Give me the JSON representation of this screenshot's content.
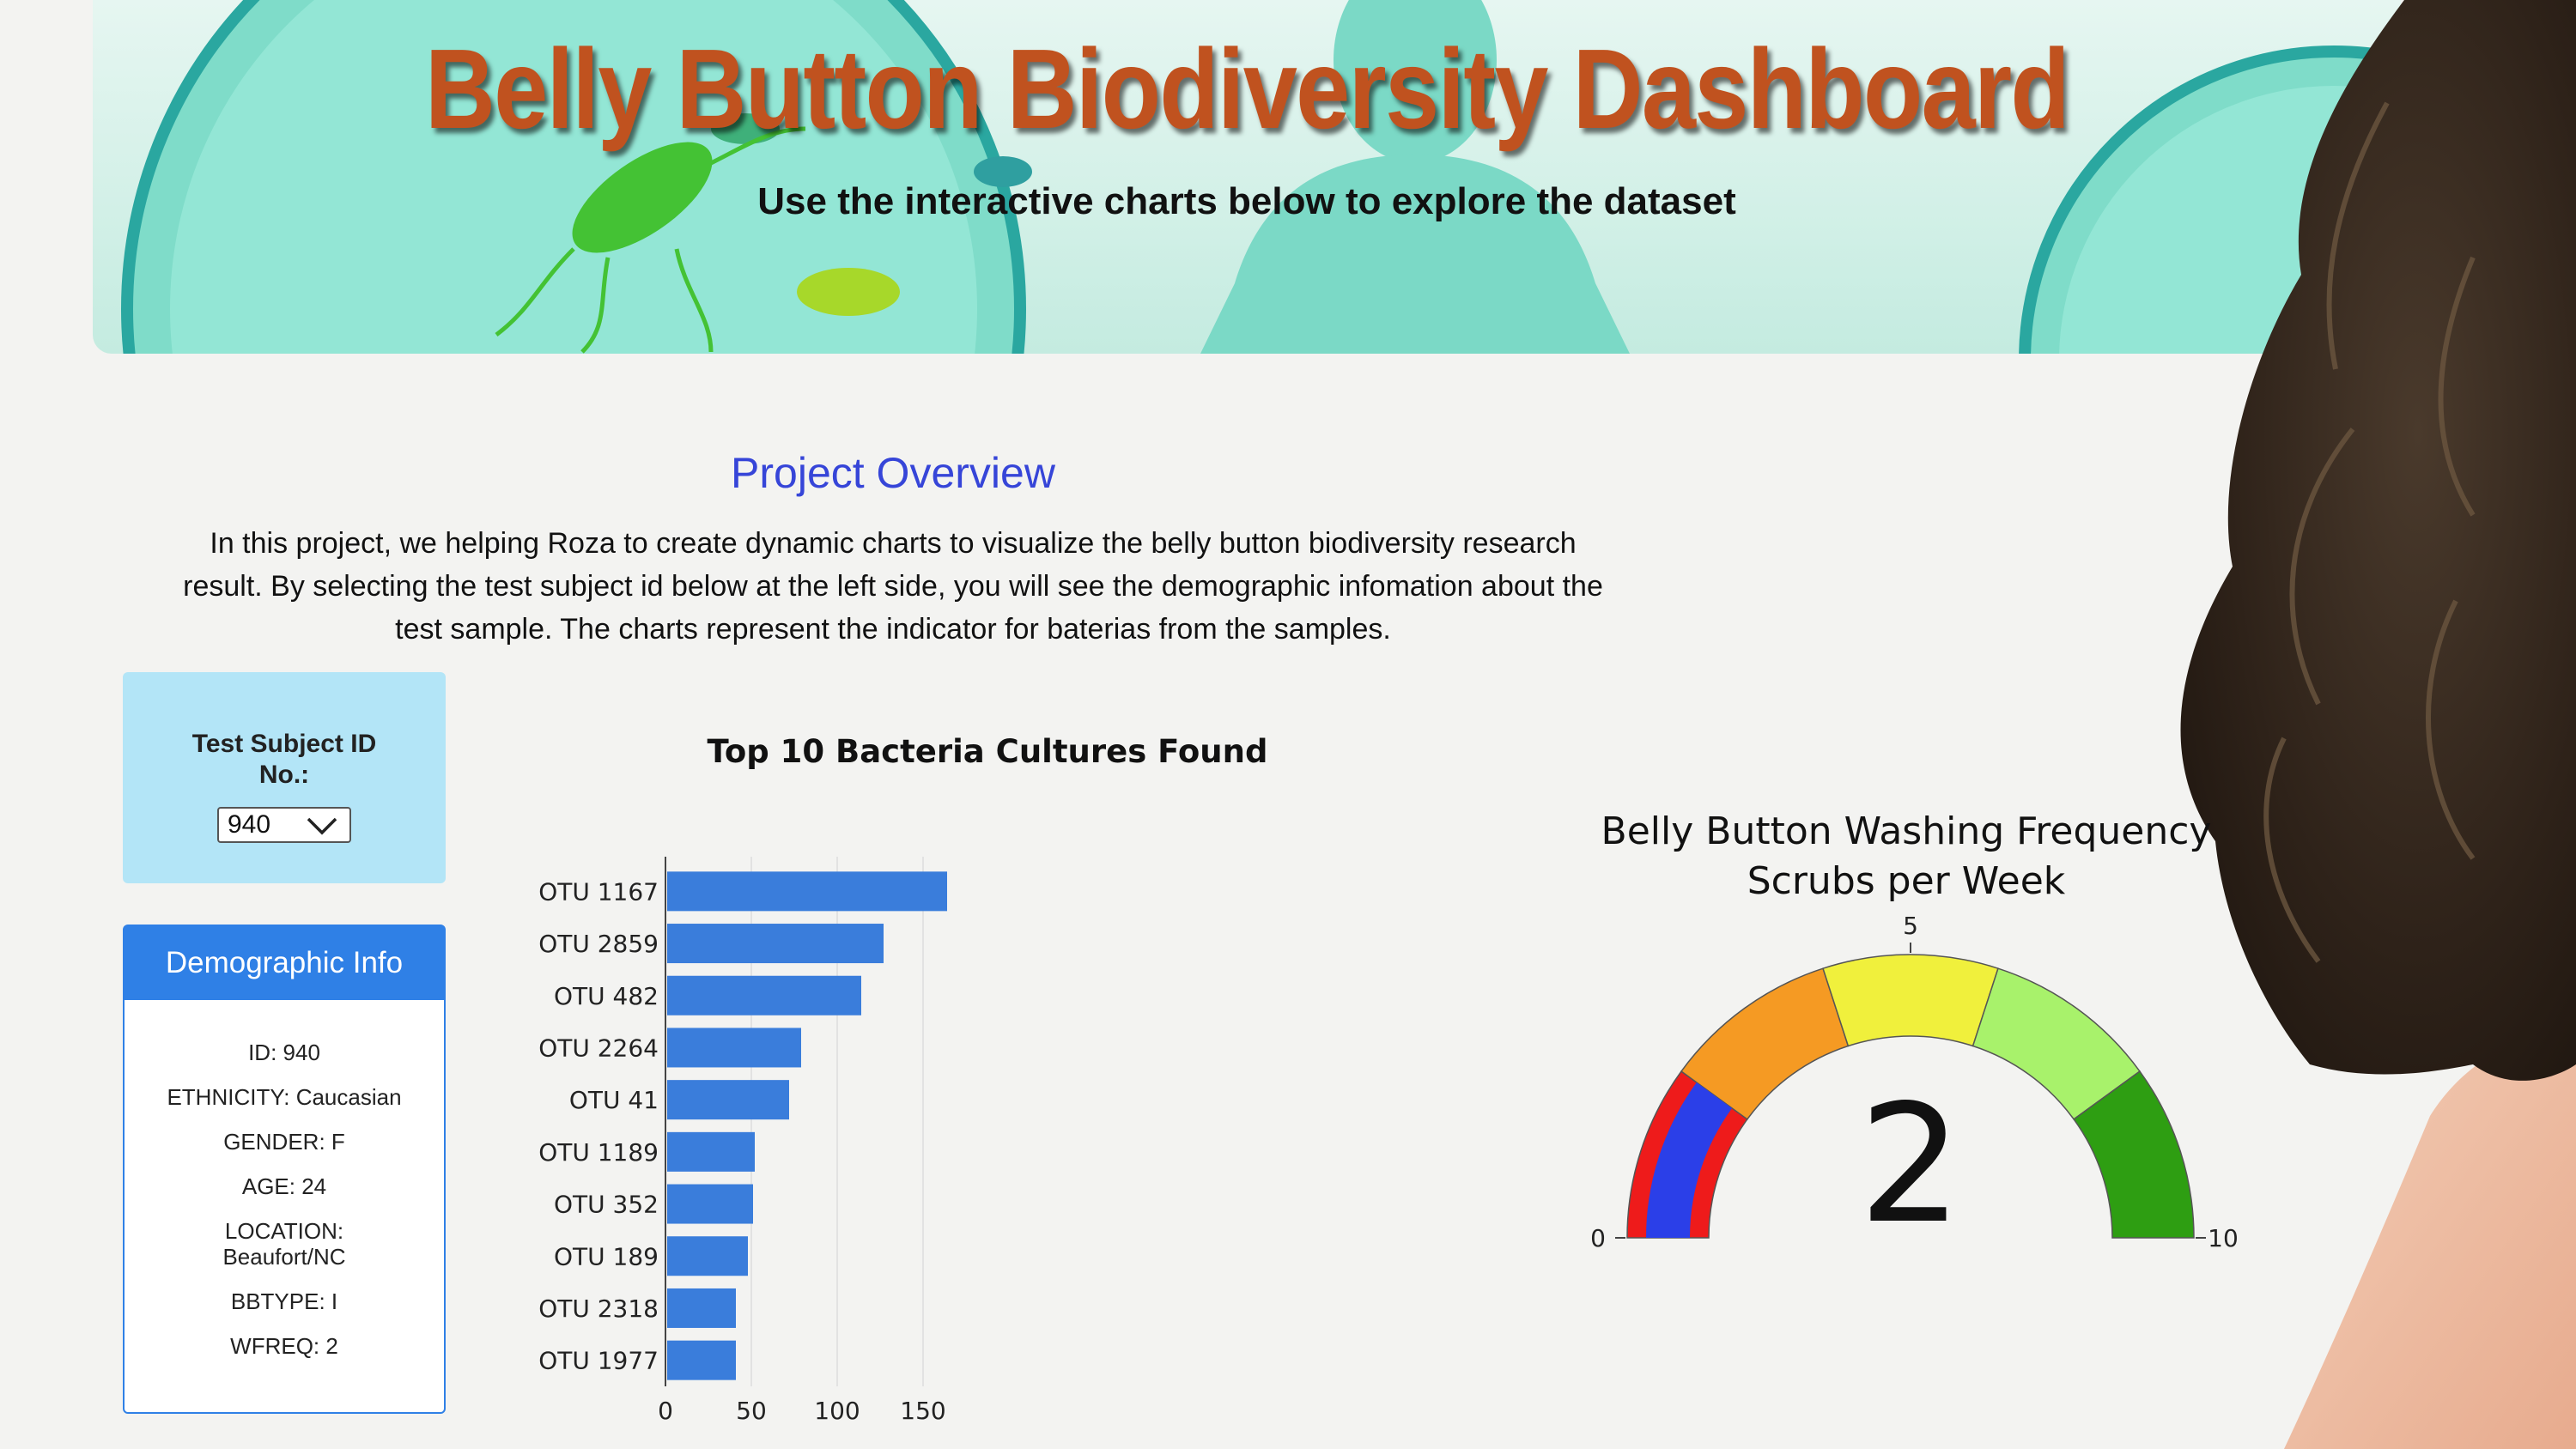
{
  "header": {
    "title": "Belly Button Biodiversity Dashboard",
    "subtitle": "Use the interactive charts below to explore the dataset"
  },
  "overview": {
    "title": "Project Overview",
    "text": "In this project, we helping Roza to create dynamic charts to visualize the belly button biodiversity research result. By selecting the test subject id below at the left side, you will see the demographic infomation about the test sample. The charts represent the indicator for baterias from the samples."
  },
  "selector": {
    "label_line1": "Test Subject ID",
    "label_line2": "No.:",
    "selected": "940"
  },
  "demographic": {
    "title": "Demographic Info",
    "id": "ID: 940",
    "ethnicity": "ETHNICITY: Caucasian",
    "gender": "GENDER: F",
    "age": "AGE: 24",
    "location_label": "LOCATION:",
    "location_value": "Beaufort/NC",
    "bbtype": "BBTYPE: I",
    "wfreq": "WFREQ: 2"
  },
  "colors": {
    "accent_blue": "#2f80e6",
    "bar_blue": "#3a7ddb",
    "title_orange": "#c0521f",
    "overview_blue": "#3645d8",
    "panel_blue": "#b3e5f7"
  },
  "chart_data": [
    {
      "type": "bar",
      "orientation": "horizontal",
      "title": "Top 10 Bacteria Cultures Found",
      "categories": [
        "OTU 1167",
        "OTU 2859",
        "OTU 482",
        "OTU 2264",
        "OTU 41",
        "OTU 1189",
        "OTU 352",
        "OTU 189",
        "OTU 2318",
        "OTU 1977"
      ],
      "values": [
        163,
        126,
        113,
        78,
        71,
        51,
        50,
        47,
        40,
        40
      ],
      "xticks": [
        "0",
        "50",
        "100",
        "150"
      ],
      "xlim": [
        0,
        170
      ],
      "grid": true
    },
    {
      "type": "gauge",
      "title_line1": "Belly Button Washing Frequency",
      "title_line2": "Scrubs per Week",
      "value": 2,
      "value_label": "2",
      "range": [
        0,
        10
      ],
      "tick_labels": [
        "0",
        "5",
        "10"
      ],
      "steps": [
        {
          "from": 0,
          "to": 2,
          "color": "#ee1b1b"
        },
        {
          "from": 2,
          "to": 4,
          "color": "#f59a23"
        },
        {
          "from": 4,
          "to": 6,
          "color": "#f0f03c"
        },
        {
          "from": 6,
          "to": 8,
          "color": "#a8f26b"
        },
        {
          "from": 8,
          "to": 10,
          "color": "#2e9e12"
        }
      ],
      "bar_color": "#2b3fe8"
    }
  ]
}
